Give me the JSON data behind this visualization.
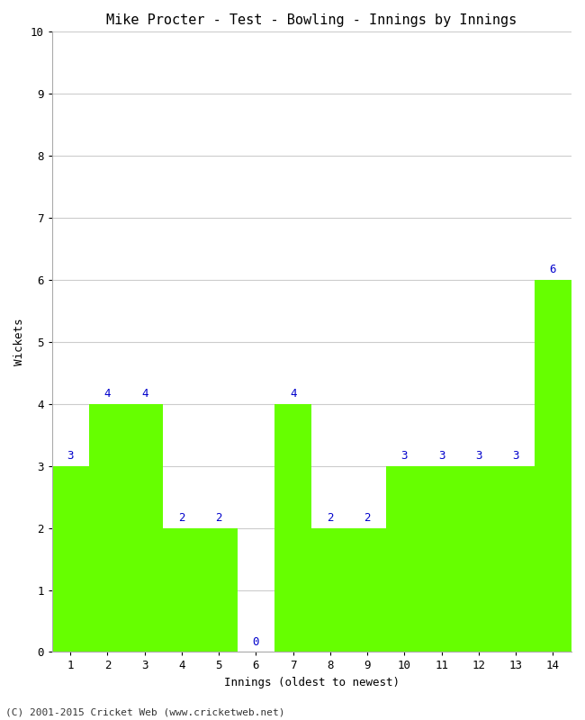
{
  "title": "Mike Procter - Test - Bowling - Innings by Innings",
  "xlabel": "Innings (oldest to newest)",
  "ylabel": "Wickets",
  "categories": [
    "1",
    "2",
    "3",
    "4",
    "5",
    "6",
    "7",
    "8",
    "9",
    "10",
    "11",
    "12",
    "13",
    "14"
  ],
  "values": [
    3,
    4,
    4,
    2,
    2,
    0,
    4,
    2,
    2,
    3,
    3,
    3,
    3,
    6
  ],
  "bar_color": "#66ff00",
  "bar_edge_color": "#66ff00",
  "label_color": "#0000cc",
  "background_color": "#ffffff",
  "ylim": [
    0,
    10
  ],
  "yticks": [
    0,
    1,
    2,
    3,
    4,
    5,
    6,
    7,
    8,
    9,
    10
  ],
  "title_fontsize": 11,
  "axis_label_fontsize": 9,
  "tick_fontsize": 9,
  "value_label_fontsize": 9,
  "footer": "(C) 2001-2015 Cricket Web (www.cricketweb.net)",
  "footer_fontsize": 8
}
